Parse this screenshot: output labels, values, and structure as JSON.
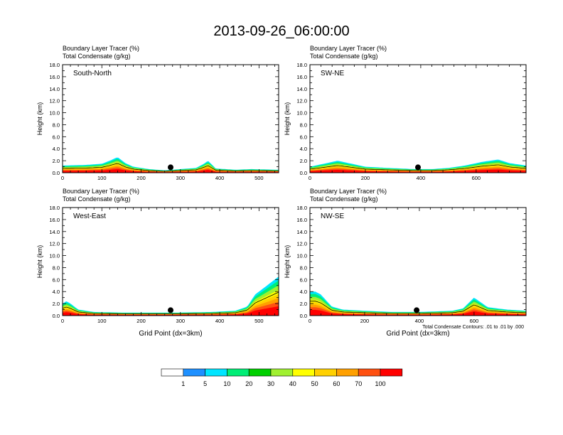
{
  "figure": {
    "title": "2013-09-26_06:00:00",
    "contour_note": "Total Condensate Contours: .01 to .01 by .000"
  },
  "colorbar": {
    "labels": [
      "1",
      "5",
      "10",
      "20",
      "30",
      "40",
      "50",
      "60",
      "70",
      "100"
    ],
    "colors": [
      "#ffffff",
      "#1e90ff",
      "#00e5ff",
      "#00ee76",
      "#00d000",
      "#a0f030",
      "#ffff00",
      "#ffd000",
      "#ffa000",
      "#ff5010",
      "#ff0000"
    ]
  },
  "chart_data": [
    {
      "type": "heatmap",
      "name": "South-North",
      "title_line1": "Boundary Layer Tracer   (%)",
      "title_line2": "Total Condensate   (g/kg)",
      "ylabel": "Height (km)",
      "xlabel": "",
      "ylim": [
        0,
        18
      ],
      "yticks": [
        "0.0",
        "2.0",
        "4.0",
        "6.0",
        "8.0",
        "10.0",
        "12.0",
        "14.0",
        "16.0",
        "18.0"
      ],
      "xlim": [
        0,
        550
      ],
      "xticks": [
        0,
        100,
        200,
        300,
        400,
        500
      ],
      "marker_x": 275,
      "layer_x": [
        0,
        60,
        100,
        120,
        140,
        160,
        180,
        220,
        260,
        340,
        360,
        370,
        390,
        440,
        480,
        550
      ],
      "layer_top": [
        1.2,
        1.3,
        1.5,
        2.0,
        2.6,
        1.6,
        1.0,
        0.6,
        0.4,
        0.8,
        1.5,
        2.0,
        0.7,
        0.5,
        0.6,
        0.5
      ]
    },
    {
      "type": "heatmap",
      "name": "SW-NE",
      "title_line1": "Boundary Layer Tracer   (%)",
      "title_line2": "Total Condensate   (g/kg)",
      "ylabel": "Height (km)",
      "xlabel": "",
      "ylim": [
        0,
        18
      ],
      "yticks": [
        "0.0",
        "2.0",
        "4.0",
        "6.0",
        "8.0",
        "10.0",
        "12.0",
        "14.0",
        "16.0",
        "18.0"
      ],
      "xlim": [
        0,
        780
      ],
      "xticks": [
        0,
        200,
        400,
        600
      ],
      "marker_x": 390,
      "layer_x": [
        0,
        50,
        100,
        160,
        200,
        280,
        380,
        440,
        500,
        560,
        620,
        680,
        720,
        780
      ],
      "layer_top": [
        1.0,
        1.5,
        2.0,
        1.4,
        1.0,
        0.8,
        0.6,
        0.6,
        0.8,
        1.2,
        1.8,
        2.2,
        1.6,
        1.2
      ]
    },
    {
      "type": "heatmap",
      "name": "West-East",
      "title_line1": "Boundary Layer Tracer   (%)",
      "title_line2": "Total Condensate   (g/kg)",
      "ylabel": "Height (km)",
      "xlabel": "Grid Point (dx=3km)",
      "ylim": [
        0,
        18
      ],
      "yticks": [
        "0.0",
        "2.0",
        "4.0",
        "6.0",
        "8.0",
        "10.0",
        "12.0",
        "14.0",
        "16.0",
        "18.0"
      ],
      "xlim": [
        0,
        550
      ],
      "xticks": [
        0,
        100,
        200,
        300,
        400,
        500
      ],
      "marker_x": 275,
      "layer_x": [
        0,
        10,
        20,
        40,
        80,
        160,
        280,
        380,
        440,
        470,
        490,
        510,
        530,
        550
      ],
      "layer_top": [
        2.0,
        2.4,
        2.0,
        1.0,
        0.6,
        0.5,
        0.5,
        0.6,
        0.8,
        1.5,
        3.5,
        4.5,
        5.5,
        6.5
      ]
    },
    {
      "type": "heatmap",
      "name": "NW-SE",
      "title_line1": "Boundary Layer Tracer   (%)",
      "title_line2": "Total Condensate   (g/kg)",
      "ylabel": "Height (km)",
      "xlabel": "Grid Point (dx=3km)",
      "ylim": [
        0,
        18
      ],
      "yticks": [
        "0.0",
        "2.0",
        "4.0",
        "6.0",
        "8.0",
        "10.0",
        "12.0",
        "14.0",
        "16.0",
        "18.0"
      ],
      "xlim": [
        0,
        790
      ],
      "xticks": [
        0,
        200,
        400,
        600
      ],
      "marker_x": 390,
      "layer_x": [
        0,
        20,
        40,
        60,
        80,
        120,
        200,
        300,
        400,
        520,
        560,
        600,
        650,
        720,
        790
      ],
      "layer_top": [
        4.0,
        4.0,
        3.5,
        2.5,
        1.5,
        1.0,
        0.8,
        0.6,
        0.6,
        0.8,
        1.2,
        3.0,
        1.4,
        1.0,
        0.8
      ]
    }
  ]
}
